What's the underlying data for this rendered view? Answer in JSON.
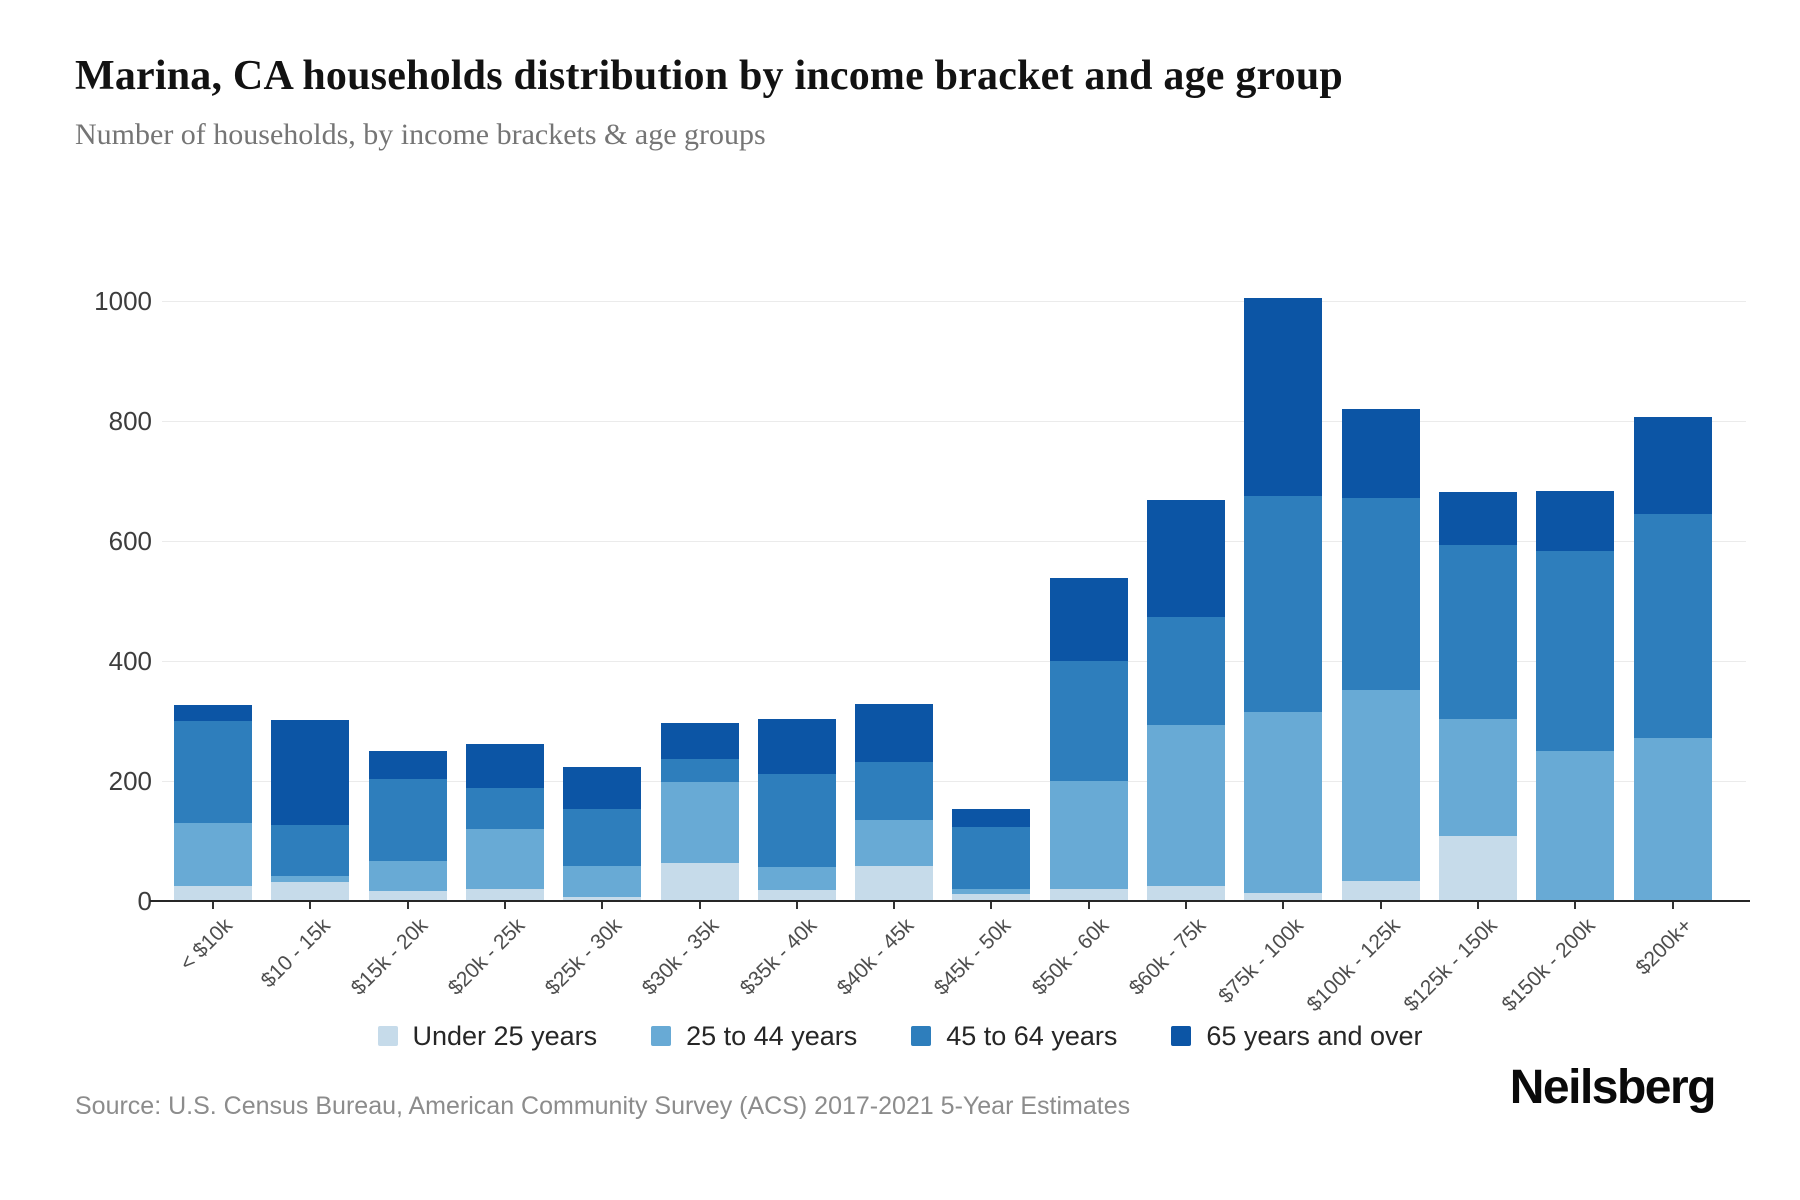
{
  "header": {
    "title": "Marina, CA households distribution by income bracket and age group",
    "subtitle": "Number of households, by income brackets & age groups"
  },
  "chart_data": {
    "type": "bar",
    "stacked": true,
    "title": "Marina, CA households distribution by income bracket and age group",
    "subtitle": "Number of households, by income brackets & age groups",
    "xlabel": "",
    "ylabel": "",
    "ylim": [
      0,
      1000
    ],
    "yticks": [
      0,
      200,
      400,
      600,
      800,
      1000
    ],
    "grid": "horizontal",
    "legend_position": "bottom",
    "categories": [
      "< $10k",
      "$10 - 15k",
      "$15k - 20k",
      "$20k - 25k",
      "$25k - 30k",
      "$30k - 35k",
      "$35k - 40k",
      "$40k - 45k",
      "$45k - 50k",
      "$50k - 60k",
      "$60k - 75k",
      "$75k - 100k",
      "$100k - 125k",
      "$125k - 150k",
      "$150k - 200k",
      "$200k+"
    ],
    "series": [
      {
        "name": "Under 25 years",
        "color": "#c6dbea",
        "values": [
          25,
          31,
          17,
          20,
          7,
          64,
          18,
          59,
          12,
          20,
          25,
          13,
          34,
          108,
          0,
          0
        ]
      },
      {
        "name": "25 to 44 years",
        "color": "#68aad5",
        "values": [
          105,
          11,
          50,
          100,
          51,
          134,
          38,
          76,
          8,
          180,
          268,
          302,
          318,
          195,
          250,
          272
        ]
      },
      {
        "name": "45 to 64 years",
        "color": "#2e7ebc",
        "values": [
          170,
          85,
          137,
          68,
          95,
          38,
          155,
          96,
          103,
          200,
          180,
          360,
          319,
          290,
          333,
          373
        ]
      },
      {
        "name": "65 years and over",
        "color": "#0c55a5",
        "values": [
          27,
          175,
          46,
          73,
          70,
          61,
          93,
          98,
          30,
          138,
          195,
          330,
          149,
          89,
          101,
          162
        ]
      }
    ]
  },
  "footer": {
    "source": "Source: U.S. Census Bureau, American Community Survey (ACS) 2017-2021 5-Year Estimates",
    "logo": "Neilsberg"
  }
}
